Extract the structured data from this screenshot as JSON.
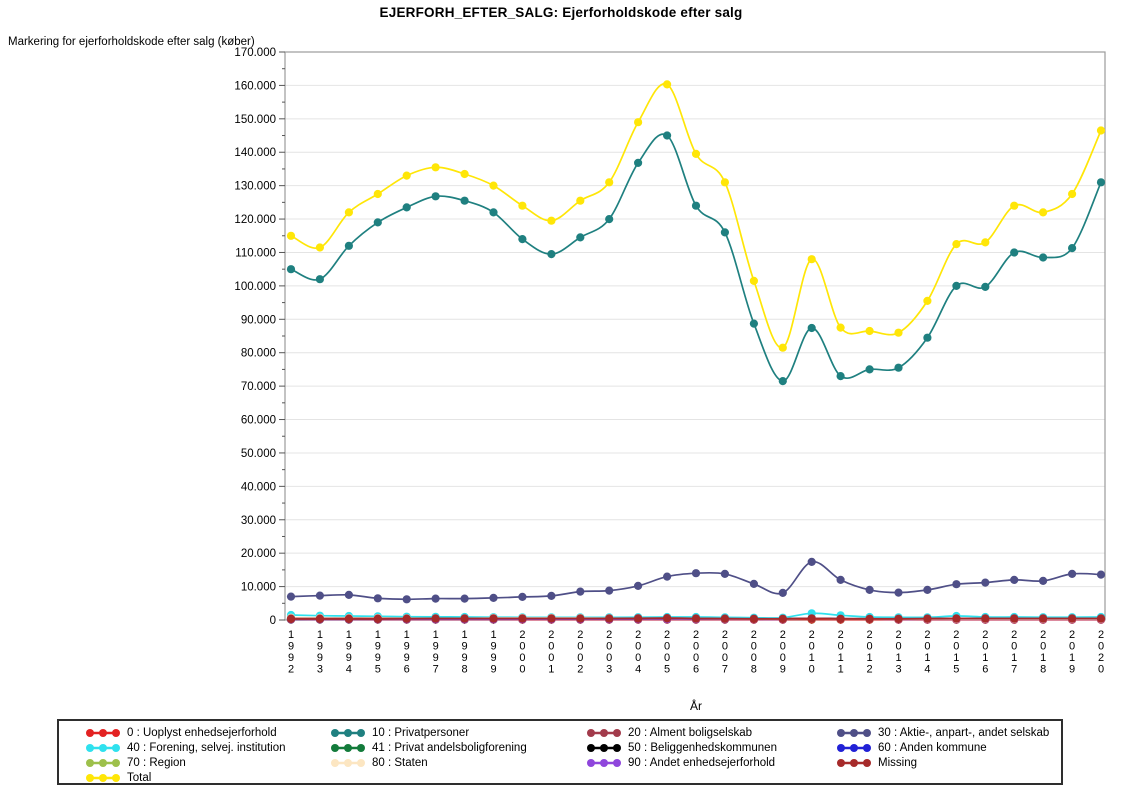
{
  "title": "EJERFORH_EFTER_SALG: Ejerforholdskode efter salg",
  "chart_data": {
    "type": "line",
    "title": "EJERFORH_EFTER_SALG: Ejerforholdskode efter salg",
    "y_axis_title": "Markering for ejerforholdskode efter salg (køber)",
    "xlabel": "År",
    "ylim": [
      0,
      170000
    ],
    "y_major_step": 10000,
    "y_minor_step": 5000,
    "grid": "horizontal-major-only",
    "legend_position": "bottom-box",
    "x": [
      1992,
      1993,
      1994,
      1995,
      1996,
      1997,
      1998,
      1999,
      2000,
      2001,
      2002,
      2003,
      2004,
      2005,
      2006,
      2007,
      2008,
      2009,
      2010,
      2011,
      2012,
      2013,
      2014,
      2015,
      2016,
      2017,
      2018,
      2019,
      2020
    ],
    "series": [
      {
        "name": "0 : Uoplyst enhedsejerforhold",
        "color": "#E32222",
        "values": [
          200,
          180,
          170,
          160,
          150,
          150,
          140,
          140,
          130,
          130,
          120,
          120,
          120,
          120,
          110,
          110,
          100,
          100,
          150,
          120,
          110,
          100,
          100,
          100,
          100,
          100,
          100,
          100,
          100
        ]
      },
      {
        "name": "10 : Privatpersoner",
        "color": "#1F8080",
        "values": [
          105000,
          102000,
          112000,
          119000,
          123500,
          126800,
          125500,
          122000,
          114000,
          109500,
          114500,
          120000,
          136800,
          145000,
          124000,
          116000,
          88700,
          71500,
          87400,
          73000,
          75000,
          75500,
          84500,
          100000,
          99700,
          110000,
          108500,
          111300,
          131000
        ]
      },
      {
        "name": "20 : Alment boligselskab",
        "color": "#A23B4B",
        "values": [
          450,
          450,
          450,
          450,
          450,
          500,
          500,
          500,
          500,
          500,
          500,
          500,
          550,
          600,
          500,
          450,
          400,
          400,
          500,
          400,
          400,
          400,
          450,
          500,
          500,
          500,
          500,
          500,
          500
        ]
      },
      {
        "name": "30 : Aktie-, anpart-, andet selskab",
        "color": "#4F4F87",
        "values": [
          7000,
          7300,
          7500,
          6500,
          6200,
          6400,
          6400,
          6600,
          6900,
          7200,
          8500,
          8800,
          10200,
          13000,
          14000,
          13800,
          10800,
          8100,
          17400,
          12000,
          9000,
          8200,
          9000,
          10700,
          11200,
          12000,
          11700,
          13800,
          13600
        ]
      },
      {
        "name": "40 : Forening, selvej. institution",
        "color": "#2FE1EE",
        "values": [
          1500,
          1300,
          1200,
          1100,
          1000,
          950,
          900,
          850,
          800,
          800,
          800,
          800,
          850,
          900,
          900,
          800,
          700,
          700,
          2000,
          1400,
          900,
          800,
          800,
          1200,
          900,
          900,
          850,
          850,
          900
        ]
      },
      {
        "name": "41 : Privat andelsboligforening",
        "color": "#137B3B",
        "values": [
          300,
          290,
          280,
          270,
          260,
          260,
          250,
          250,
          250,
          250,
          240,
          240,
          240,
          240,
          230,
          220,
          200,
          200,
          250,
          220,
          210,
          200,
          200,
          200,
          200,
          200,
          200,
          200,
          200
        ]
      },
      {
        "name": "50 : Beliggenhedskommunen",
        "color": "#000000",
        "values": [
          500,
          500,
          550,
          550,
          600,
          700,
          700,
          700,
          700,
          700,
          700,
          700,
          700,
          700,
          600,
          500,
          400,
          400,
          500,
          400,
          400,
          400,
          450,
          500,
          500,
          500,
          500,
          500,
          500
        ]
      },
      {
        "name": "60 : Anden kommune",
        "color": "#2121D6",
        "values": [
          150,
          150,
          150,
          150,
          150,
          150,
          150,
          150,
          150,
          150,
          150,
          150,
          150,
          150,
          150,
          150,
          150,
          150,
          200,
          150,
          150,
          150,
          150,
          150,
          150,
          150,
          150,
          150,
          150
        ]
      },
      {
        "name": "70 : Region",
        "color": "#9DC04B",
        "values": [
          80,
          80,
          80,
          80,
          80,
          80,
          80,
          80,
          80,
          80,
          80,
          80,
          80,
          80,
          80,
          80,
          80,
          80,
          80,
          80,
          80,
          80,
          80,
          80,
          80,
          80,
          80,
          80,
          80
        ]
      },
      {
        "name": "80 : Staten",
        "color": "#FCE6C2",
        "values": [
          700,
          650,
          600,
          600,
          550,
          500,
          500,
          600,
          600,
          600,
          600,
          550,
          500,
          500,
          400,
          350,
          300,
          300,
          400,
          300,
          300,
          300,
          300,
          300,
          300,
          300,
          300,
          300,
          300
        ]
      },
      {
        "name": "90 : Andet enhedsejerforhold",
        "color": "#8F46DC",
        "values": [
          200,
          200,
          200,
          200,
          200,
          200,
          200,
          200,
          200,
          200,
          200,
          200,
          200,
          200,
          200,
          200,
          200,
          200,
          500,
          400,
          300,
          200,
          200,
          200,
          200,
          200,
          200,
          200,
          200
        ]
      },
      {
        "name": "Missing",
        "color": "#A62A2A",
        "values": [
          300,
          300,
          300,
          300,
          350,
          400,
          400,
          400,
          400,
          400,
          400,
          400,
          400,
          450,
          400,
          350,
          300,
          300,
          400,
          300,
          300,
          300,
          350,
          400,
          400,
          400,
          400,
          400,
          400
        ]
      },
      {
        "name": "Total",
        "color": "#FFE607",
        "values": [
          115000,
          111500,
          122000,
          127500,
          133000,
          135500,
          133500,
          130000,
          124000,
          119500,
          125500,
          131000,
          149000,
          160300,
          139500,
          131000,
          101500,
          81500,
          108000,
          87500,
          86500,
          86000,
          95500,
          112500,
          113000,
          124000,
          122000,
          127500,
          146500
        ]
      }
    ],
    "draw_order": [
      "70 : Region",
      "60 : Anden kommune",
      "41 : Privat andelsboligforening",
      "0 : Uoplyst enhedsejerforhold",
      "90 : Andet enhedsejerforhold",
      "50 : Beliggenhedskommunen",
      "40 : Forening, selvej. institution",
      "80 : Staten",
      "20 : Alment boligselskab",
      "Missing",
      "30 : Aktie-, anpart-, andet selskab",
      "10 : Privatpersoner",
      "Total"
    ]
  },
  "legend": {
    "columns": [
      [
        "0 : Uoplyst enhedsejerforhold",
        "40 : Forening, selvej. institution",
        "70 : Region",
        "Total"
      ],
      [
        "10 : Privatpersoner",
        "41 : Privat andelsboligforening",
        "80 : Staten"
      ],
      [
        "20 : Alment boligselskab",
        "50 : Beliggenhedskommunen",
        "90 : Andet enhedsejerforhold"
      ],
      [
        "30 : Aktie-, anpart-, andet selskab",
        "60 : Anden kommune",
        "Missing"
      ]
    ]
  },
  "colors": {
    "gridline": "#E4E4E4",
    "frame": "#9B9B9B",
    "text": "#000000",
    "background": "#FFFFFF"
  }
}
